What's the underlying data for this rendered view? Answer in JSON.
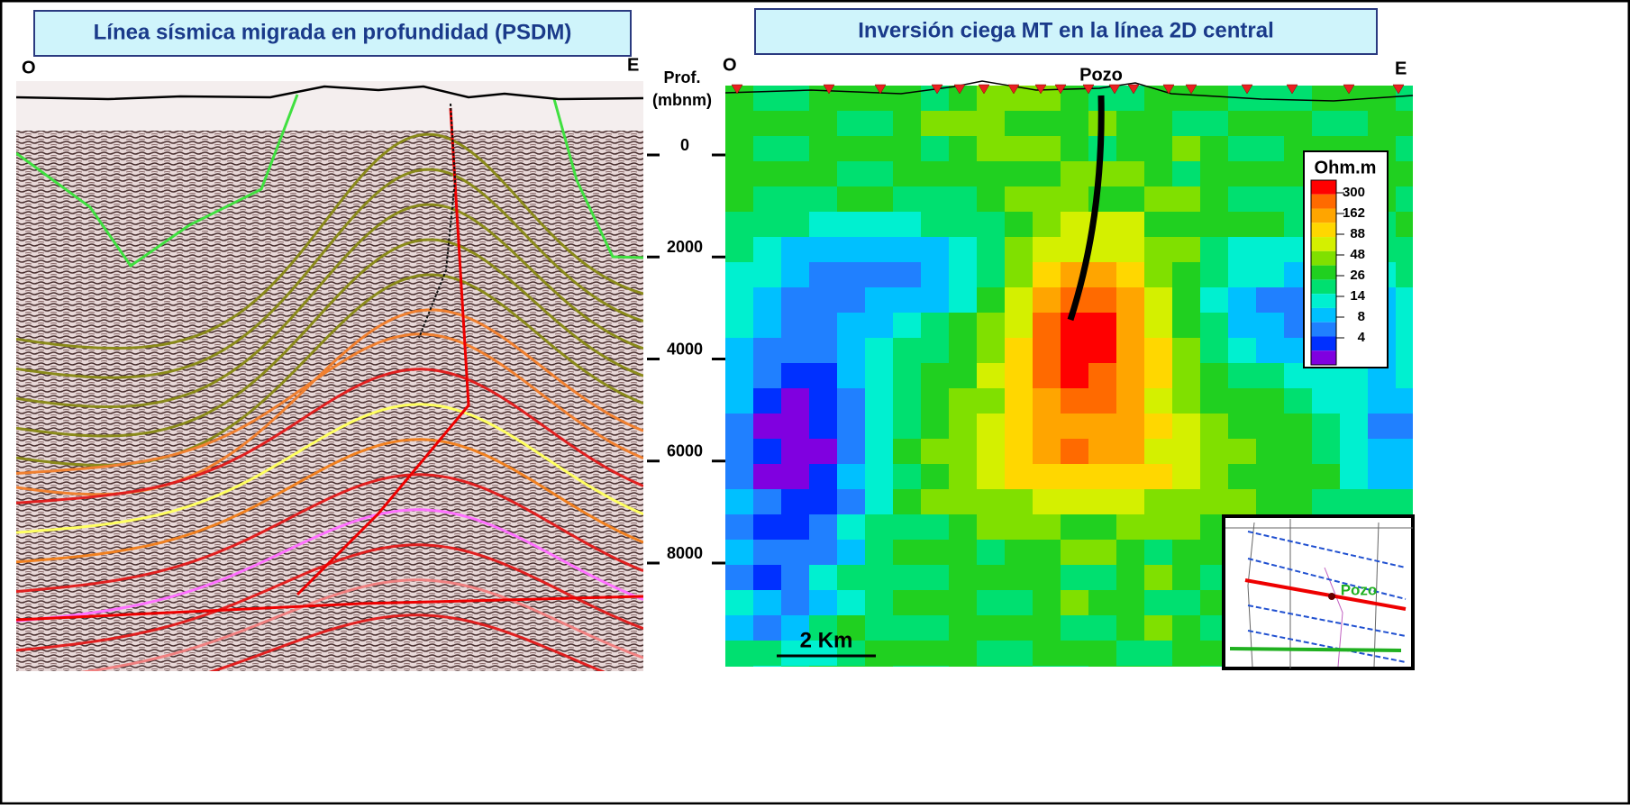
{
  "left_panel": {
    "title": "Línea sísmica migrada en profundidad (PSDM)",
    "west": "O",
    "east": "E"
  },
  "depth_axis": {
    "label_lines": [
      "Prof.",
      "(mbnm)"
    ],
    "ticks": [
      0,
      2000,
      4000,
      6000,
      8000
    ],
    "lim": [
      0,
      8000
    ]
  },
  "right_panel": {
    "title": "Inversión ciega MT en la línea 2D central",
    "west": "O",
    "east": "E",
    "well": "Pozo",
    "scale_bar": "2 Km"
  },
  "colorbar": {
    "title": "Ohm.m",
    "labels": [
      300,
      162,
      88,
      48,
      26,
      14,
      8,
      4
    ],
    "colors": [
      "#ff0000",
      "#ff6a00",
      "#ffa500",
      "#ffd700",
      "#d4f000",
      "#80e000",
      "#20d020",
      "#00e070",
      "#00f0d0",
      "#00c0ff",
      "#2080ff",
      "#0030ff",
      "#8000e0"
    ]
  },
  "inset": {
    "well": "Pozo"
  }
}
